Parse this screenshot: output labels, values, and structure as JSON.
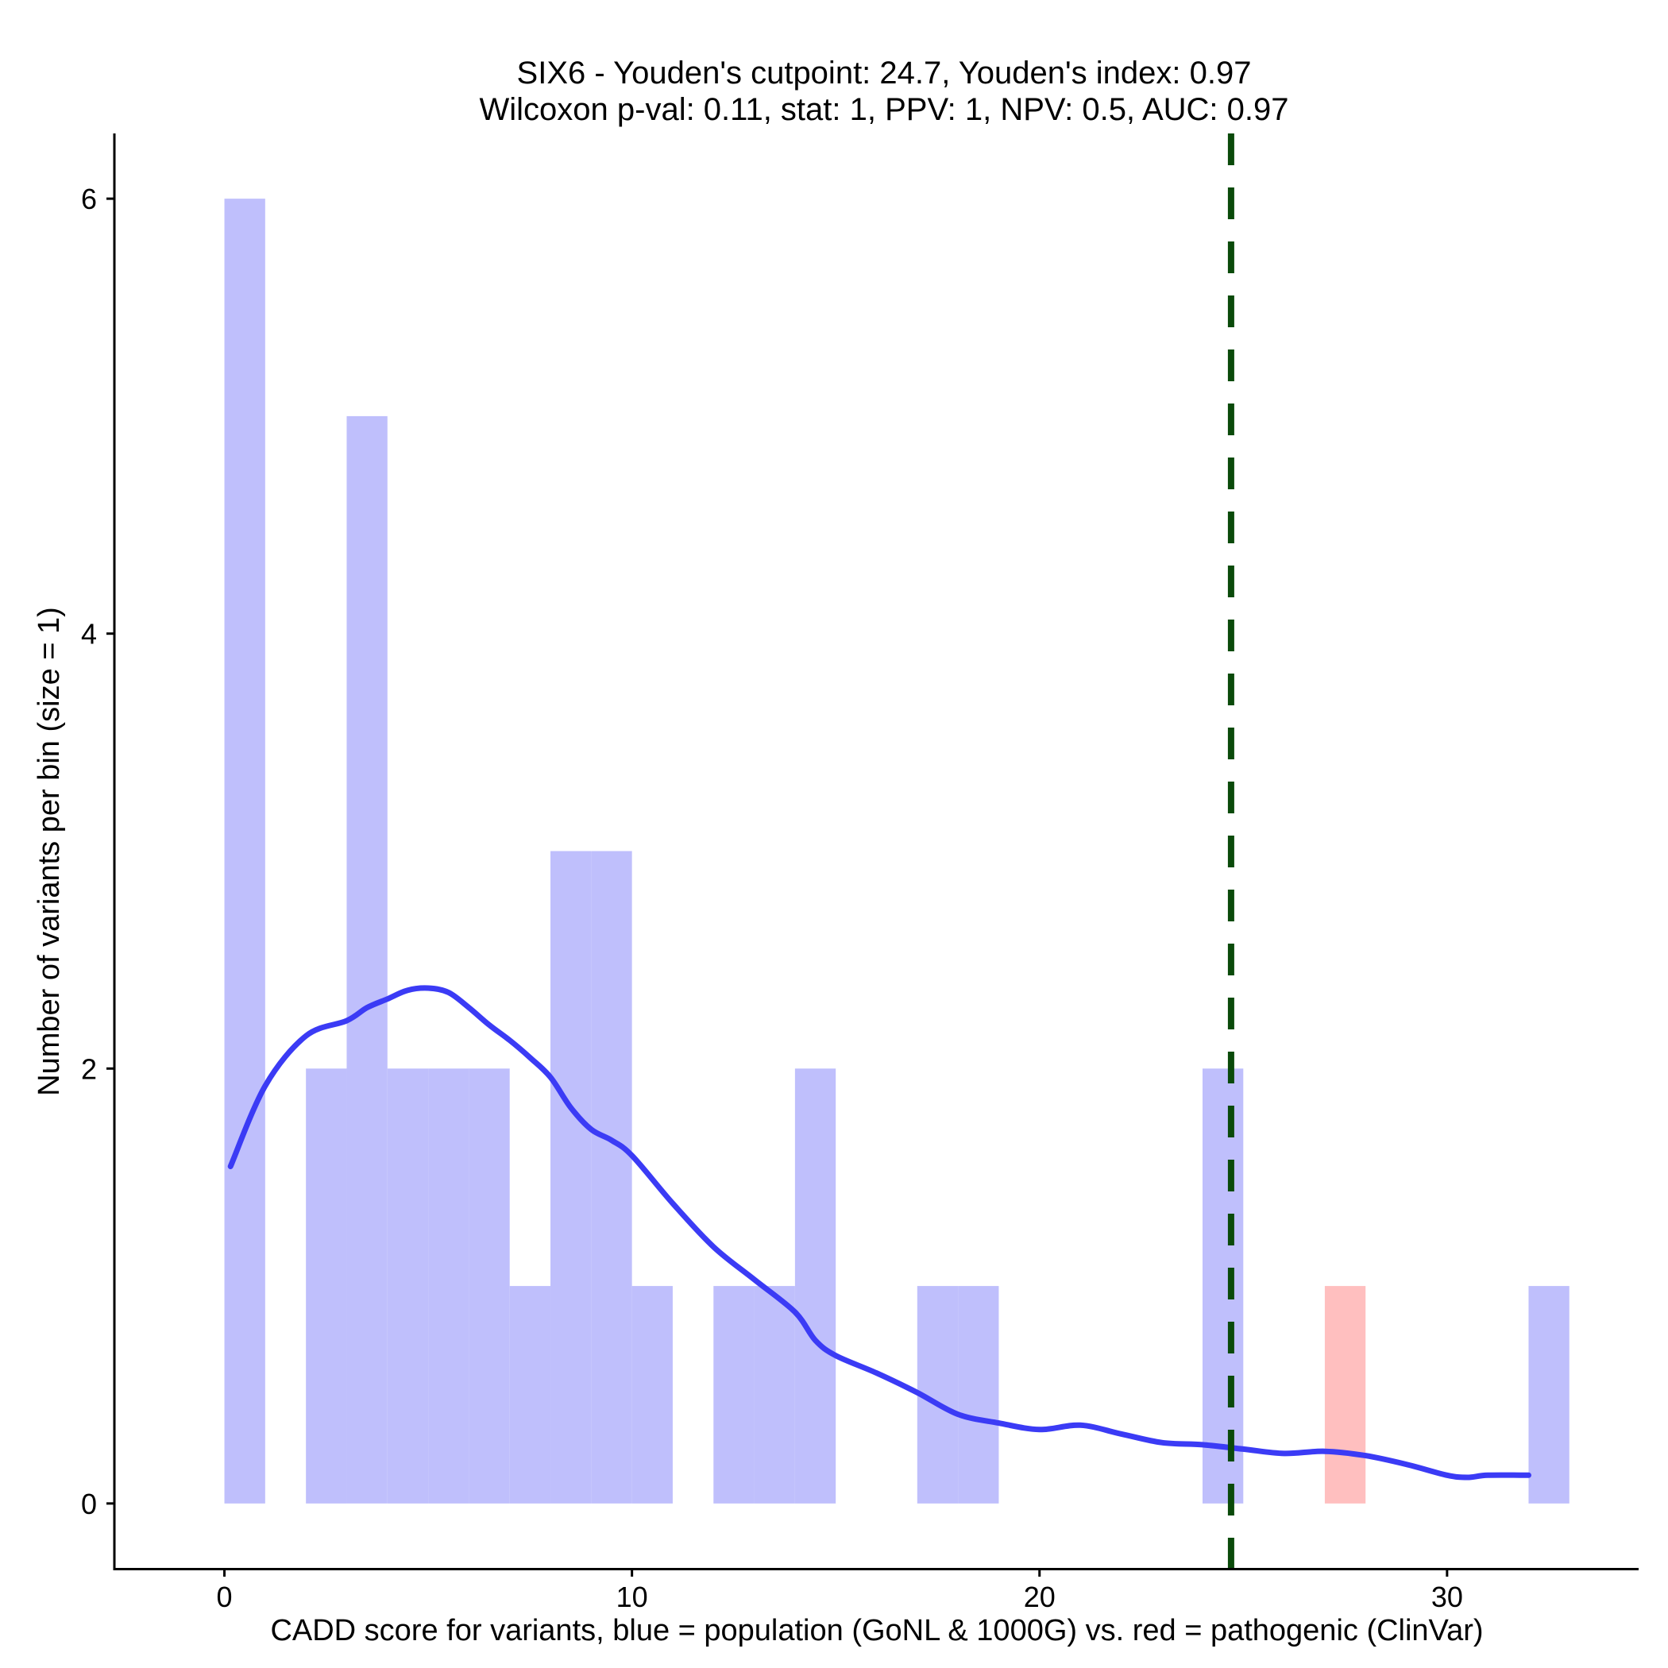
{
  "chart_data": {
    "type": "bar",
    "title": "SIX6 - Youden's cutpoint: 24.7, Youden's index: 0.97",
    "subtitle": "Wilcoxon p-val: 0.11, stat: 1, PPV: 1, NPV: 0.5, AUC: 0.97",
    "xlabel": "CADD score for variants, blue = population (GoNL & 1000G) vs. red = pathogenic (ClinVar)",
    "ylabel": "Number of variants per bin (size = 1)",
    "xlim": [
      -2.7,
      34.7
    ],
    "ylim": [
      -0.3,
      6.3
    ],
    "xticks": [
      0,
      10,
      20,
      30
    ],
    "yticks": [
      0,
      2,
      4,
      6
    ],
    "bin_size": 1,
    "series": [
      {
        "name": "population (GoNL & 1000G)",
        "color": "#bfbffc",
        "bins": [
          {
            "x0": 0,
            "x1": 1,
            "count": 6
          },
          {
            "x0": 2,
            "x1": 3,
            "count": 2
          },
          {
            "x0": 3,
            "x1": 4,
            "count": 5
          },
          {
            "x0": 4,
            "x1": 5,
            "count": 2
          },
          {
            "x0": 5,
            "x1": 6,
            "count": 2
          },
          {
            "x0": 6,
            "x1": 7,
            "count": 2
          },
          {
            "x0": 7,
            "x1": 8,
            "count": 1
          },
          {
            "x0": 8,
            "x1": 9,
            "count": 3
          },
          {
            "x0": 9,
            "x1": 10,
            "count": 3
          },
          {
            "x0": 10,
            "x1": 11,
            "count": 1
          },
          {
            "x0": 12,
            "x1": 13,
            "count": 1
          },
          {
            "x0": 13,
            "x1": 14,
            "count": 1
          },
          {
            "x0": 14,
            "x1": 15,
            "count": 2
          },
          {
            "x0": 17,
            "x1": 18,
            "count": 1
          },
          {
            "x0": 18,
            "x1": 19,
            "count": 1
          },
          {
            "x0": 24,
            "x1": 25,
            "count": 2
          },
          {
            "x0": 32,
            "x1": 33,
            "count": 1
          }
        ]
      },
      {
        "name": "pathogenic (ClinVar)",
        "color": "#ffbfbf",
        "bins": [
          {
            "x0": 27,
            "x1": 28,
            "count": 1
          }
        ]
      }
    ],
    "density": {
      "name": "population density",
      "color": "#3b3bf5",
      "x": [
        0.15,
        1,
        2,
        3,
        3.5,
        4,
        4.5,
        5,
        5.5,
        6,
        6.5,
        7,
        7.5,
        8,
        8.5,
        9,
        9.5,
        10,
        11,
        12,
        13,
        14,
        14.5,
        15,
        16,
        17,
        18,
        19,
        20,
        21,
        22,
        23,
        24,
        25,
        26,
        27,
        28,
        29,
        30,
        30.5,
        31,
        32
      ],
      "y": [
        1.55,
        1.92,
        2.15,
        2.22,
        2.28,
        2.32,
        2.36,
        2.37,
        2.35,
        2.28,
        2.2,
        2.13,
        2.05,
        1.96,
        1.82,
        1.72,
        1.67,
        1.6,
        1.38,
        1.18,
        1.03,
        0.88,
        0.75,
        0.68,
        0.6,
        0.51,
        0.41,
        0.37,
        0.34,
        0.36,
        0.32,
        0.28,
        0.27,
        0.25,
        0.23,
        0.24,
        0.22,
        0.18,
        0.13,
        0.12,
        0.13,
        0.13
      ]
    },
    "cutpoint": {
      "label": "Youden's cutpoint",
      "x": 24.7,
      "color": "#0a4a0a",
      "style": "dashed"
    }
  }
}
